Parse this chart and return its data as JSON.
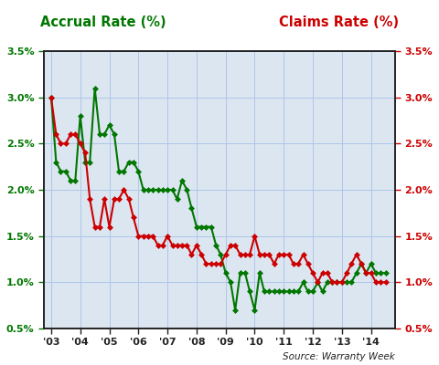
{
  "title_left": "Accrual Rate (%)",
  "title_right": "Claims Rate (%)",
  "source_text": "Source: Warranty Week",
  "title_left_color": "#007700",
  "title_right_color": "#cc0000",
  "ylim": [
    0.005,
    0.035
  ],
  "yticks": [
    0.005,
    0.01,
    0.015,
    0.02,
    0.025,
    0.03,
    0.035
  ],
  "ytick_labels": [
    "0.5%",
    "1.0%",
    "1.5%",
    "2.0%",
    "2.5%",
    "3.0%",
    "3.5%"
  ],
  "xtick_positions": [
    2003,
    2004,
    2005,
    2006,
    2007,
    2008,
    2009,
    2010,
    2011,
    2012,
    2013,
    2014
  ],
  "xtick_labels": [
    "'03",
    "'04",
    "'05",
    "'06",
    "'07",
    "'08",
    "'09",
    "'10",
    "'11",
    "'12",
    "'13",
    "'14"
  ],
  "accrual_color": "#007700",
  "claims_color": "#cc0000",
  "marker": "D",
  "marker_size": 3,
  "line_width": 1.5,
  "background_color": "#dce6f1",
  "xlim_left": 2002.75,
  "xlim_right": 2014.83,
  "accrual_x": [
    2003.0,
    2003.17,
    2003.33,
    2003.5,
    2003.67,
    2003.83,
    2004.0,
    2004.17,
    2004.33,
    2004.5,
    2004.67,
    2004.83,
    2005.0,
    2005.17,
    2005.33,
    2005.5,
    2005.67,
    2005.83,
    2006.0,
    2006.17,
    2006.33,
    2006.5,
    2006.67,
    2006.83,
    2007.0,
    2007.17,
    2007.33,
    2007.5,
    2007.67,
    2007.83,
    2008.0,
    2008.17,
    2008.33,
    2008.5,
    2008.67,
    2008.83,
    2009.0,
    2009.17,
    2009.33,
    2009.5,
    2009.67,
    2009.83,
    2010.0,
    2010.17,
    2010.33,
    2010.5,
    2010.67,
    2010.83,
    2011.0,
    2011.17,
    2011.33,
    2011.5,
    2011.67,
    2011.83,
    2012.0,
    2012.17,
    2012.33,
    2012.5,
    2012.67,
    2012.83,
    2013.0,
    2013.17,
    2013.33,
    2013.5,
    2013.67,
    2013.83,
    2014.0,
    2014.17,
    2014.33,
    2014.5
  ],
  "accrual_y": [
    0.03,
    0.023,
    0.022,
    0.022,
    0.021,
    0.021,
    0.028,
    0.023,
    0.023,
    0.031,
    0.026,
    0.026,
    0.027,
    0.026,
    0.022,
    0.022,
    0.023,
    0.023,
    0.022,
    0.02,
    0.02,
    0.02,
    0.02,
    0.02,
    0.02,
    0.02,
    0.019,
    0.021,
    0.02,
    0.018,
    0.016,
    0.016,
    0.016,
    0.016,
    0.014,
    0.013,
    0.011,
    0.01,
    0.007,
    0.011,
    0.011,
    0.009,
    0.007,
    0.011,
    0.009,
    0.009,
    0.009,
    0.009,
    0.009,
    0.009,
    0.009,
    0.009,
    0.01,
    0.009,
    0.009,
    0.01,
    0.009,
    0.01,
    0.01,
    0.01,
    0.01,
    0.01,
    0.01,
    0.011,
    0.012,
    0.011,
    0.012,
    0.011,
    0.011,
    0.011
  ],
  "claims_x": [
    2003.0,
    2003.17,
    2003.33,
    2003.5,
    2003.67,
    2003.83,
    2004.0,
    2004.17,
    2004.33,
    2004.5,
    2004.67,
    2004.83,
    2005.0,
    2005.17,
    2005.33,
    2005.5,
    2005.67,
    2005.83,
    2006.0,
    2006.17,
    2006.33,
    2006.5,
    2006.67,
    2006.83,
    2007.0,
    2007.17,
    2007.33,
    2007.5,
    2007.67,
    2007.83,
    2008.0,
    2008.17,
    2008.33,
    2008.5,
    2008.67,
    2008.83,
    2009.0,
    2009.17,
    2009.33,
    2009.5,
    2009.67,
    2009.83,
    2010.0,
    2010.17,
    2010.33,
    2010.5,
    2010.67,
    2010.83,
    2011.0,
    2011.17,
    2011.33,
    2011.5,
    2011.67,
    2011.83,
    2012.0,
    2012.17,
    2012.33,
    2012.5,
    2012.67,
    2012.83,
    2013.0,
    2013.17,
    2013.33,
    2013.5,
    2013.67,
    2013.83,
    2014.0,
    2014.17,
    2014.33,
    2014.5
  ],
  "claims_y": [
    0.03,
    0.026,
    0.025,
    0.025,
    0.026,
    0.026,
    0.025,
    0.024,
    0.019,
    0.016,
    0.016,
    0.019,
    0.016,
    0.019,
    0.019,
    0.02,
    0.019,
    0.017,
    0.015,
    0.015,
    0.015,
    0.015,
    0.014,
    0.014,
    0.015,
    0.014,
    0.014,
    0.014,
    0.014,
    0.013,
    0.014,
    0.013,
    0.012,
    0.012,
    0.012,
    0.012,
    0.013,
    0.014,
    0.014,
    0.013,
    0.013,
    0.013,
    0.015,
    0.013,
    0.013,
    0.013,
    0.012,
    0.013,
    0.013,
    0.013,
    0.012,
    0.012,
    0.013,
    0.012,
    0.011,
    0.01,
    0.011,
    0.011,
    0.01,
    0.01,
    0.01,
    0.011,
    0.012,
    0.013,
    0.012,
    0.011,
    0.011,
    0.01,
    0.01,
    0.01
  ]
}
